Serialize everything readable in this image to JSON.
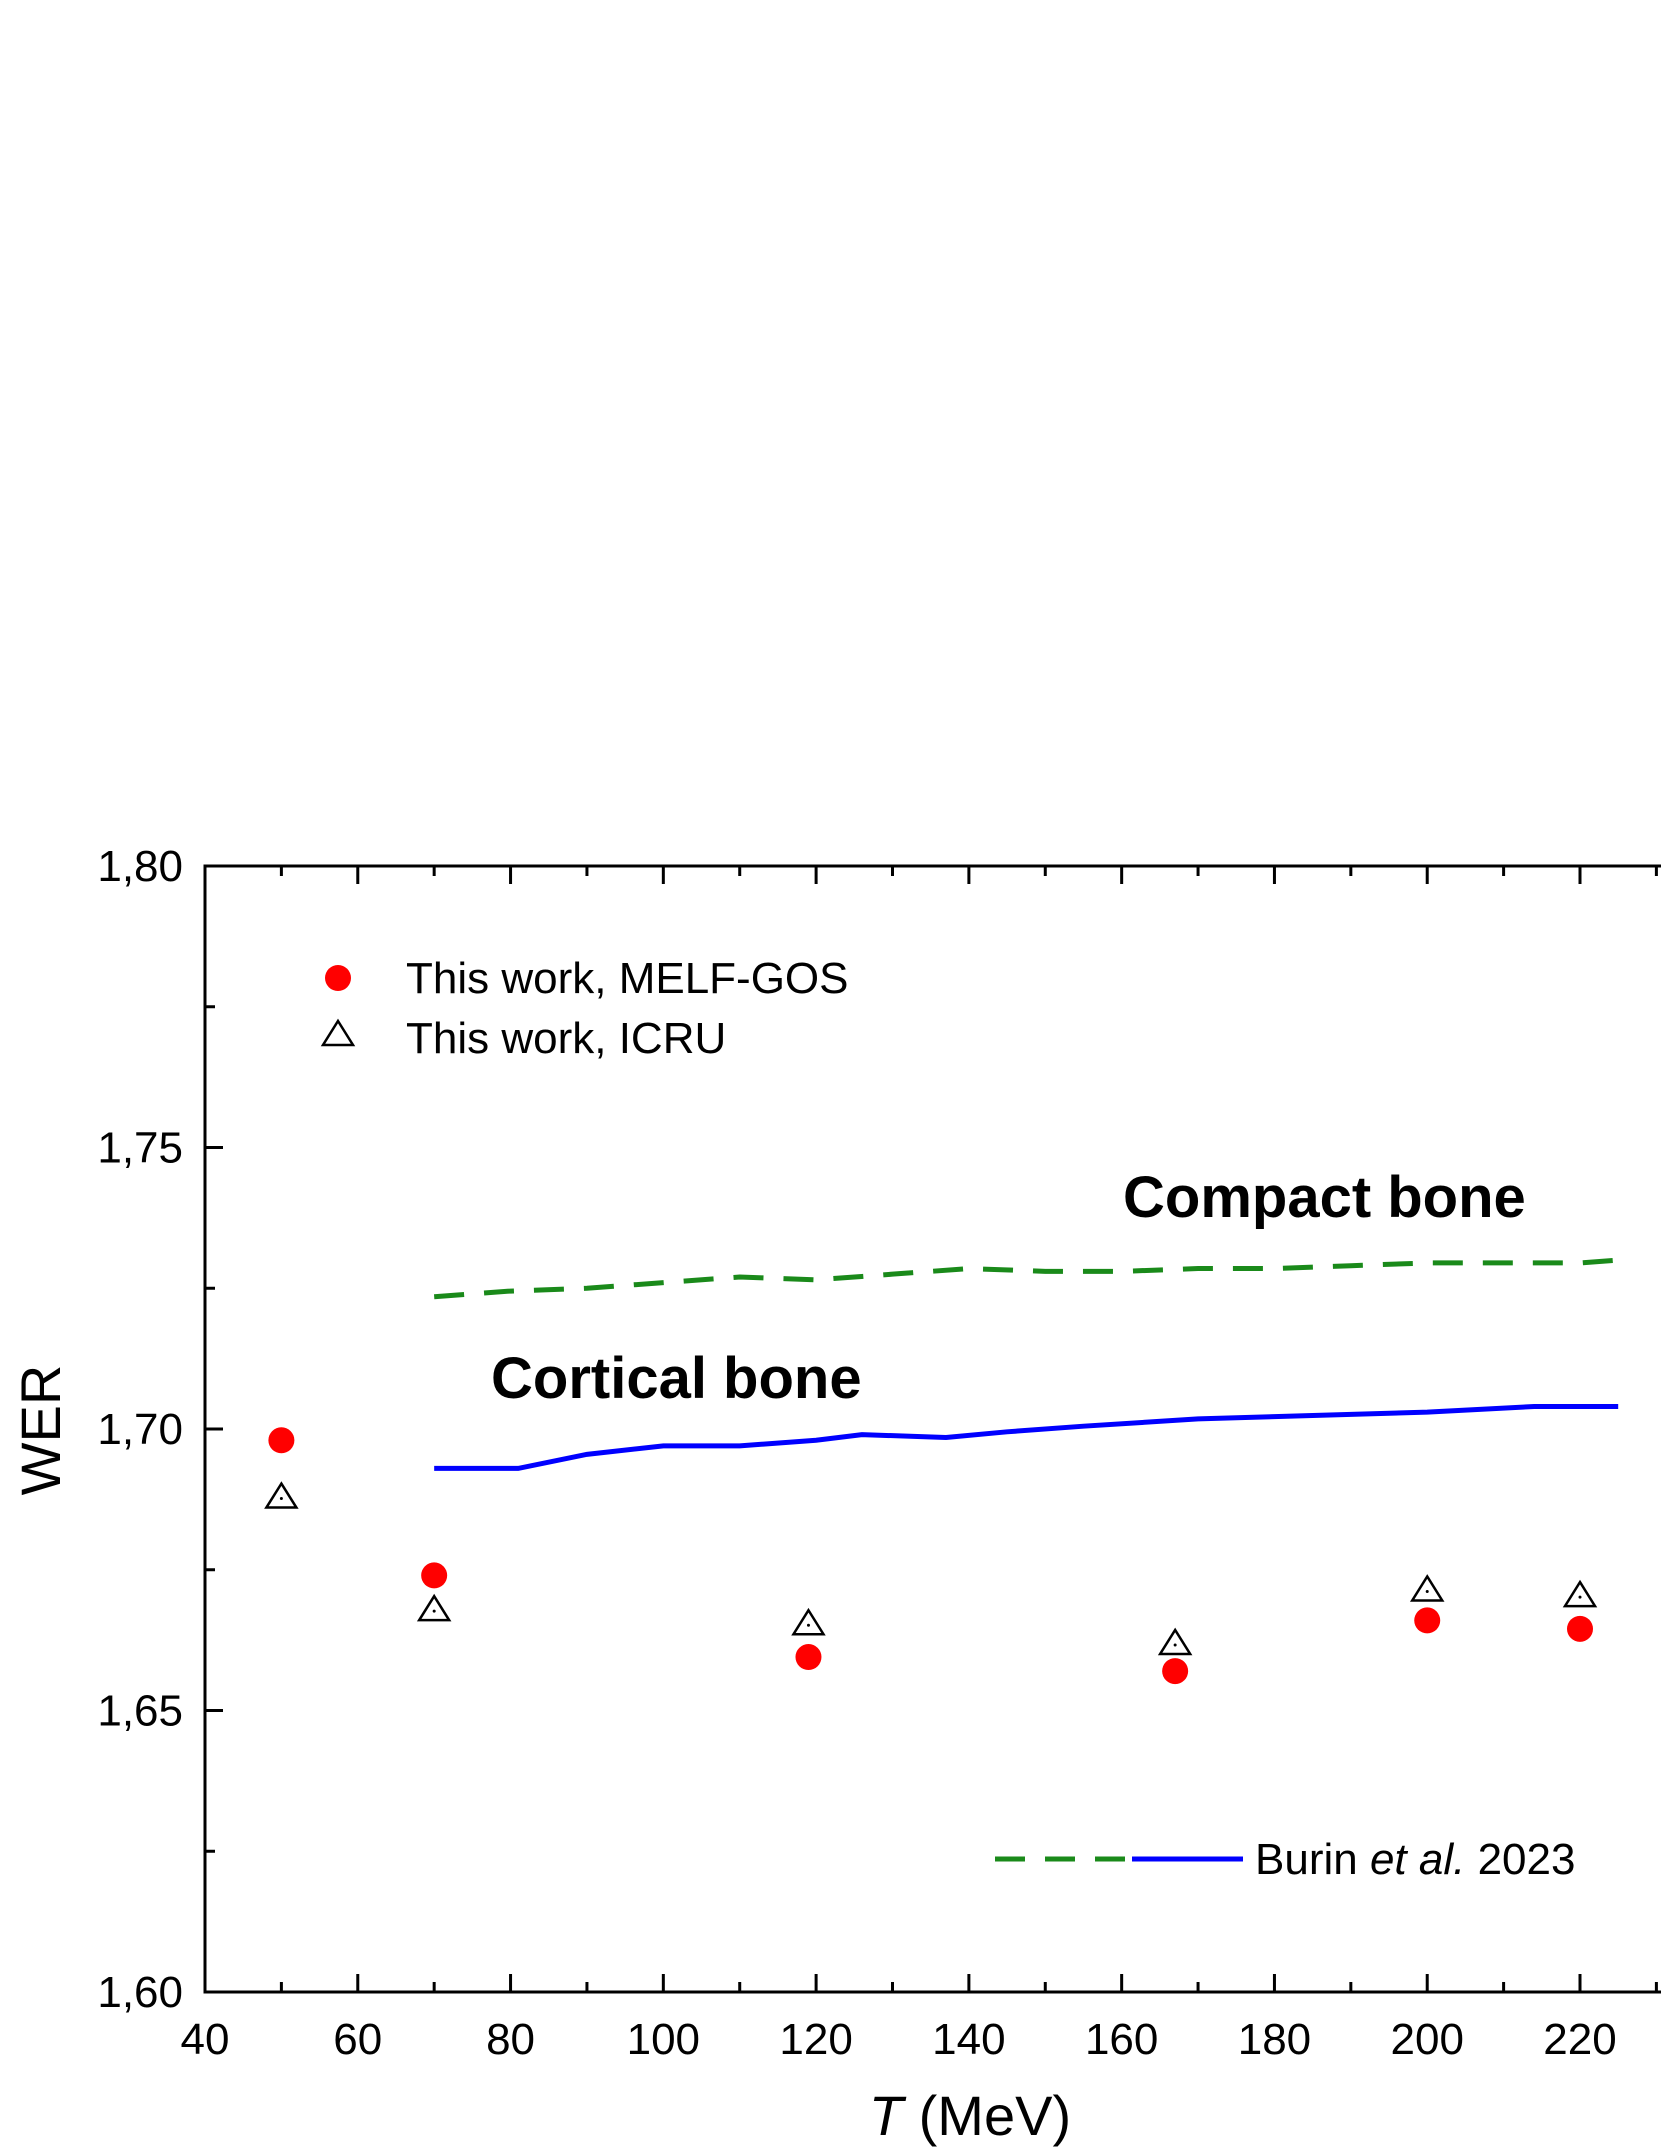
{
  "chart_data": {
    "type": "scatter",
    "xlabel_italic": "T",
    "xlabel_unit": "(MeV)",
    "ylabel": "WER",
    "xlim": [
      40,
      230
    ],
    "ylim": [
      1.6,
      1.8
    ],
    "x_ticks": [
      "40",
      "60",
      "80",
      "100",
      "120",
      "140",
      "160",
      "180",
      "200",
      "220"
    ],
    "y_ticks": [
      "1,60",
      "1,65",
      "1,70",
      "1,75",
      "1,80"
    ],
    "grid": false,
    "legend_position": "top-left",
    "series": [
      {
        "name": "This work, MELF-GOS",
        "marker": "filled-circle",
        "color": "#ff0000",
        "x": [
          50,
          70,
          119,
          167,
          200,
          220
        ],
        "y": [
          1.698,
          1.674,
          1.6595,
          1.657,
          1.666,
          1.6645
        ]
      },
      {
        "name": "This work, ICRU",
        "marker": "open-triangle",
        "color": "#000000",
        "x": [
          50,
          70,
          119,
          167,
          200,
          220
        ],
        "y": [
          1.688,
          1.668,
          1.6655,
          1.662,
          1.6715,
          1.6705
        ]
      },
      {
        "label": "Compact bone",
        "style": "dashed",
        "color": "#1a8a1a",
        "x": [
          70,
          80,
          90,
          100,
          110,
          120,
          130,
          140,
          150,
          160,
          170,
          180,
          190,
          200,
          210,
          220,
          225
        ],
        "y": [
          1.7235,
          1.7245,
          1.725,
          1.726,
          1.727,
          1.7265,
          1.7275,
          1.7285,
          1.728,
          1.728,
          1.7285,
          1.7285,
          1.729,
          1.7295,
          1.7295,
          1.7295,
          1.73
        ]
      },
      {
        "label": "Cortical bone",
        "style": "solid",
        "color": "#0000ff",
        "x": [
          70,
          81,
          90,
          100,
          110,
          120,
          126,
          137,
          145,
          155,
          170,
          200,
          214,
          225
        ],
        "y": [
          1.693,
          1.693,
          1.6955,
          1.697,
          1.697,
          1.698,
          1.699,
          1.6985,
          1.6995,
          1.7005,
          1.7018,
          1.703,
          1.704,
          1.704
        ]
      }
    ],
    "annotations": {
      "compact": "Compact bone",
      "cortical": "Cortical bone"
    },
    "line_legend": {
      "prefix": "Burin ",
      "italic": "et al.",
      "suffix": " 2023"
    }
  }
}
